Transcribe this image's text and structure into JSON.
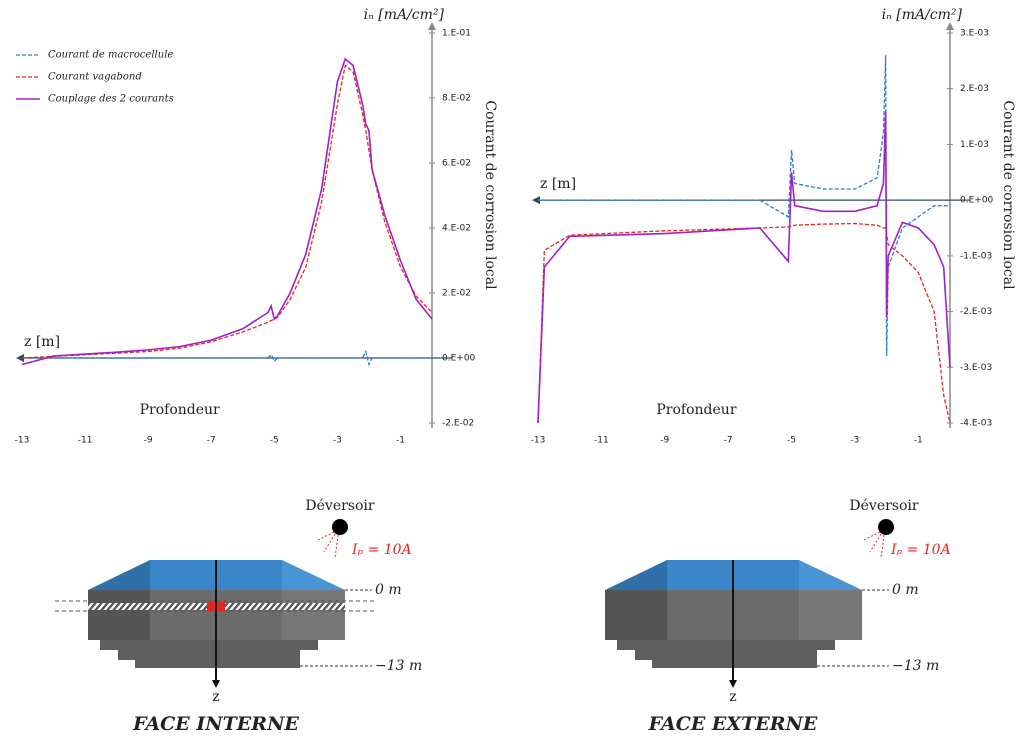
{
  "chart_data": [
    {
      "type": "line",
      "y_unit_label": "iₙ [mA/cm²]",
      "y_axis_title": "Courant de corrosion local",
      "x_label": "Profondeur",
      "z_label": "z [m]",
      "legend": "upper left",
      "xlim": [
        -13,
        0
      ],
      "xticks": [
        -13,
        -11,
        -9,
        -7,
        -5,
        -3,
        -1
      ],
      "ylim": [
        -0.02,
        0.1
      ],
      "yticks": [
        {
          "value": -0.02,
          "label": "-2.E-02"
        },
        {
          "value": 0,
          "label": "0.E+00"
        },
        {
          "value": 0.02,
          "label": "2.E-02"
        },
        {
          "value": 0.04,
          "label": "4.E-02"
        },
        {
          "value": 0.06,
          "label": "6.E-02"
        },
        {
          "value": 0.08,
          "label": "8.E-02"
        },
        {
          "value": 0.1,
          "label": "1.E-01"
        }
      ],
      "x": [
        -13,
        -12,
        -11,
        -10,
        -9,
        -8,
        -7,
        -6,
        -5.2,
        -5.1,
        -5,
        -4.9,
        -4.5,
        -4,
        -3.5,
        -3,
        -2.75,
        -2.5,
        -2.2,
        -2.1,
        -2,
        -1.9,
        -1.5,
        -1,
        -0.5,
        0
      ],
      "series": [
        {
          "name": "Courant de macrocellule",
          "color": "#2a7fc9",
          "style": "dashed",
          "values": [
            0,
            0,
            0,
            0,
            0,
            0,
            0,
            0,
            0,
            0.001,
            -0.001,
            0,
            0,
            0,
            0,
            0,
            0,
            0,
            0,
            0.002,
            -0.002,
            0,
            0,
            0,
            0,
            0
          ]
        },
        {
          "name": "Courant vagabond",
          "color": "#e8251f",
          "style": "dashed",
          "values": [
            0,
            0.0005,
            0.001,
            0.0015,
            0.002,
            0.003,
            0.005,
            0.008,
            0.011,
            0.0115,
            0.012,
            0.0125,
            0.018,
            0.028,
            0.048,
            0.078,
            0.09,
            0.088,
            0.075,
            0.07,
            0.064,
            0.058,
            0.042,
            0.028,
            0.019,
            0.014
          ]
        },
        {
          "name": "Couplage des 2 courants",
          "color": "#a020c8",
          "style": "solid",
          "values": [
            -0.002,
            0.0006,
            0.0012,
            0.0018,
            0.0025,
            0.0035,
            0.0055,
            0.009,
            0.014,
            0.016,
            0.012,
            0.013,
            0.02,
            0.032,
            0.052,
            0.085,
            0.092,
            0.09,
            0.078,
            0.072,
            0.07,
            0.058,
            0.044,
            0.03,
            0.018,
            0.012
          ]
        }
      ]
    },
    {
      "type": "line",
      "y_unit_label": "iₙ [mA/cm²]",
      "y_axis_title": "Courant de corrosion local",
      "x_label": "Profondeur",
      "z_label": "z [m]",
      "xlim": [
        -13,
        0
      ],
      "xticks": [
        -13,
        -11,
        -9,
        -7,
        -5,
        -3,
        -1
      ],
      "ylim": [
        -0.004,
        0.003
      ],
      "yticks": [
        {
          "value": -0.004,
          "label": "-4.E-03"
        },
        {
          "value": -0.003,
          "label": "-3.E-03"
        },
        {
          "value": -0.002,
          "label": "-2.E-03"
        },
        {
          "value": -0.001,
          "label": "-1.E-03"
        },
        {
          "value": 0,
          "label": "0.E+00"
        },
        {
          "value": 0.001,
          "label": "1.E-03"
        },
        {
          "value": 0.002,
          "label": "2.E-03"
        },
        {
          "value": 0.003,
          "label": "3.E-03"
        }
      ],
      "x": [
        -13,
        -12.8,
        -12,
        -9,
        -6,
        -5.1,
        -5,
        -4.9,
        -4,
        -3,
        -2.3,
        -2.1,
        -2.03,
        -2,
        -1.95,
        -1.5,
        -1,
        -0.5,
        -0.2,
        0
      ],
      "series": [
        {
          "color": "#2a7fc9",
          "style": "dashed",
          "values": [
            0,
            0,
            0,
            0,
            0,
            -0.0003,
            0.0009,
            0.0003,
            0.0002,
            0.0002,
            0.0004,
            0.0012,
            0.0026,
            -0.0028,
            -0.0012,
            -0.0005,
            -0.0003,
            -0.0001,
            -0.0001,
            -0.0001
          ]
        },
        {
          "color": "#e8251f",
          "style": "dashed",
          "values": [
            -0.004,
            -0.0009,
            -0.00063,
            -0.00055,
            -0.0005,
            -0.00048,
            -0.00047,
            -0.00045,
            -0.00043,
            -0.00042,
            -0.00045,
            -0.0005,
            -0.0005,
            -0.0006,
            -0.0008,
            -0.001,
            -0.0013,
            -0.002,
            -0.0035,
            -0.004
          ]
        },
        {
          "color": "#a020c8",
          "style": "solid",
          "values": [
            -0.004,
            -0.0012,
            -0.00065,
            -0.0006,
            -0.0005,
            -0.0011,
            0.0005,
            -0.0001,
            -0.0002,
            -0.0002,
            -0.0001,
            0.0003,
            0.0016,
            -0.0021,
            -0.001,
            -0.0004,
            -0.0005,
            -0.0008,
            -0.0012,
            -0.003
          ]
        }
      ]
    }
  ],
  "diagrams": [
    {
      "source": "Déversoir",
      "current": "Iₚ = 10A",
      "top_level": "0 m",
      "bottom_level": "−13 m",
      "axis": "z",
      "title": "FACE INTERNE"
    },
    {
      "source": "Déversoir",
      "current": "Iₚ = 10A",
      "top_level": "0 m",
      "bottom_level": "−13 m",
      "axis": "z",
      "title": "FACE EXTERNE"
    }
  ]
}
